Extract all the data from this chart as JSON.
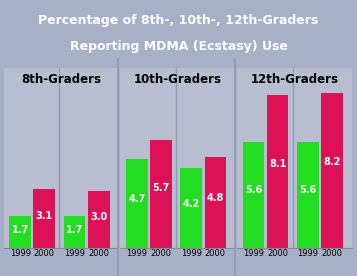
{
  "title_line1": "Percentage of 8th-, 10th-, 12th-Graders",
  "title_line2": "Reporting MDMA (Ecstasy) Use",
  "title_bg": "#2255a0",
  "title_color": "white",
  "panel_bg": "#a8b0c8",
  "plot_bg": "#b8bdd0",
  "divider_color": "#9098b0",
  "groups": [
    "8th-Graders",
    "10th-Graders",
    "12th-Graders"
  ],
  "bar_data": [
    {
      "males": [
        1.7,
        3.1
      ],
      "females": [
        1.7,
        3.0
      ]
    },
    {
      "males": [
        4.7,
        5.7
      ],
      "females": [
        4.2,
        4.8
      ]
    },
    {
      "males": [
        5.6,
        8.1
      ],
      "females": [
        5.6,
        8.2
      ]
    }
  ],
  "years": [
    "1999",
    "2000"
  ],
  "color_1999": "#22dd22",
  "color_2000": "#dd1155",
  "ylim": [
    0,
    9.5
  ],
  "group_label_fontsize": 8.5,
  "tick_fontsize": 6.0,
  "value_fontsize": 7.0,
  "gender_fontsize": 7.5,
  "title_fontsize": 9.0
}
